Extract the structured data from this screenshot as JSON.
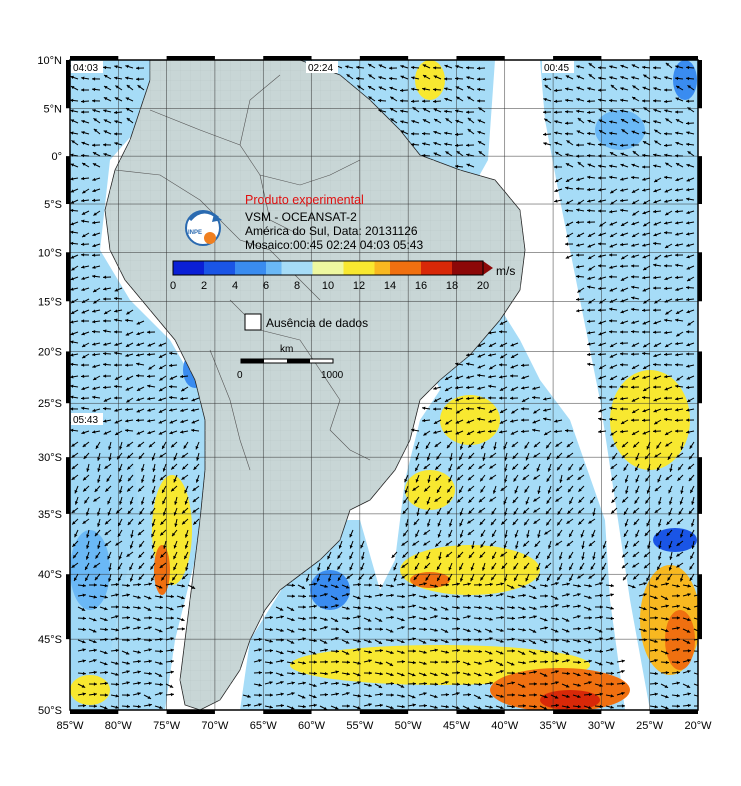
{
  "title": "Produto experimental",
  "lines": [
    "VSM - OCEANSAT-2",
    "América do Sul, Data: 20131126",
    "Mosaico:00:45 02:24 04:03 05:43"
  ],
  "logo_text": "INPE",
  "colorbar": {
    "unit": "m/s",
    "ticks": [
      "0",
      "2",
      "4",
      "6",
      "8",
      "10",
      "12",
      "14",
      "16",
      "18",
      "20"
    ],
    "colors": [
      "#0a1fd6",
      "#1a55e6",
      "#3a8cf0",
      "#6ab8f6",
      "#a6dcf7",
      "#eef8a0",
      "#f8e830",
      "#f8b820",
      "#f07010",
      "#d82808",
      "#8c0808"
    ]
  },
  "legend": {
    "missing_label": "Ausência de dados"
  },
  "scale": {
    "unit": "km",
    "start": "0",
    "end": "1000"
  },
  "pass_labels": [
    "04:03",
    "02:24",
    "00:45",
    "05:43"
  ],
  "lat_labels": [
    "10°N",
    "5°N",
    "0°",
    "5°S",
    "10°S",
    "15°S",
    "20°S",
    "25°S",
    "30°S",
    "35°S",
    "40°S",
    "45°S",
    "50°S"
  ],
  "lon_labels": [
    "85°W",
    "80°W",
    "75°W",
    "70°W",
    "65°W",
    "60°W",
    "55°W",
    "50°W",
    "45°W",
    "40°W",
    "35°W",
    "30°W",
    "25°W",
    "20°W"
  ]
}
